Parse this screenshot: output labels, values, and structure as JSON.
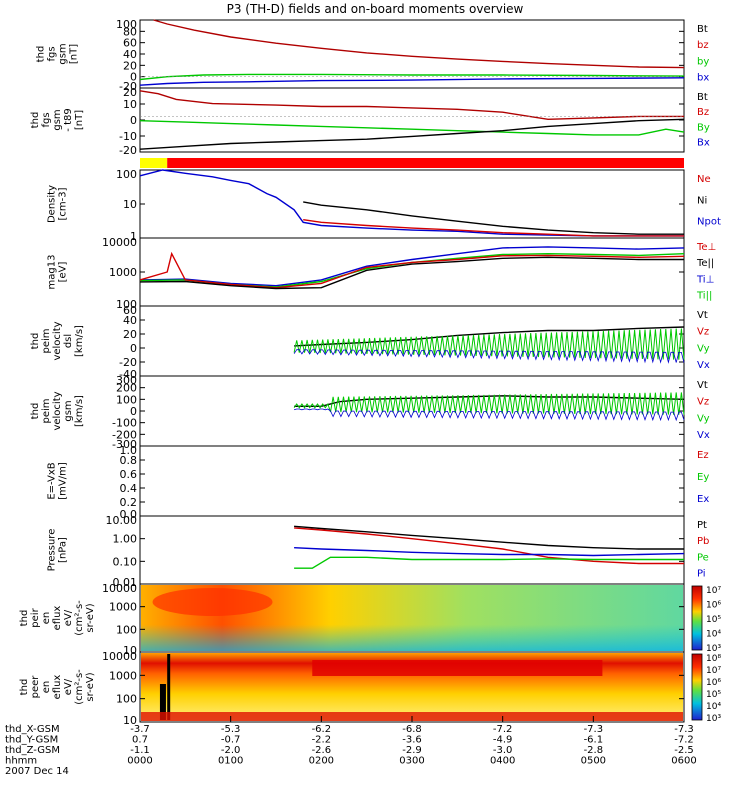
{
  "title": "P3 (TH-D) fields and on-board moments overview",
  "colors": {
    "black": "#000000",
    "red": "#d40000",
    "green": "#00c800",
    "blue": "#0000d0",
    "darkred": "#b00000",
    "spec_top": "#d01010",
    "spec_low": "#ffe000"
  },
  "chart_data": [
    {
      "type": "line",
      "ylabel": [
        "thd",
        "fgs",
        "gsm",
        "[nT]"
      ],
      "ylim": [
        -20,
        100
      ],
      "ytick_labels": [
        "100",
        "80",
        "60",
        "40",
        "20",
        "0",
        "-20"
      ],
      "legend": [
        {
          "label": "Bt",
          "color": "black"
        },
        {
          "label": "bz",
          "color": "red"
        },
        {
          "label": "by",
          "color": "green"
        },
        {
          "label": "bx",
          "color": "blue"
        }
      ],
      "series": [
        {
          "name": "Bt",
          "color": "darkred",
          "x": [
            0.15,
            0.3,
            0.6,
            1.0,
            1.5,
            2.0,
            2.5,
            3.0,
            3.5,
            4.0,
            4.5,
            5.0,
            5.5,
            6.0
          ],
          "y": [
            100,
            93,
            82,
            70,
            59,
            50,
            42,
            36,
            31,
            27,
            23,
            20,
            17,
            16
          ]
        },
        {
          "name": "by",
          "color": "green",
          "x": [
            0,
            0.3,
            0.7,
            1.2,
            2,
            3,
            4,
            5,
            6
          ],
          "y": [
            -5,
            0,
            3,
            4,
            4,
            3,
            3,
            2,
            1
          ]
        },
        {
          "name": "bx",
          "color": "blue",
          "x": [
            0,
            0.3,
            0.7,
            1.2,
            2,
            3,
            4,
            5,
            6
          ],
          "y": [
            -15,
            -12,
            -10,
            -9,
            -7,
            -6,
            -4,
            -3,
            -2
          ]
        }
      ]
    },
    {
      "type": "line",
      "ylabel": [
        "thd",
        "fgs",
        "gsm",
        "- t89",
        "[nT]"
      ],
      "ylim": [
        -25,
        20
      ],
      "ytick_labels": [
        "20",
        "10",
        "0",
        "-10",
        "-20"
      ],
      "legend": [
        {
          "label": "Bt",
          "color": "black"
        },
        {
          "label": "Bz",
          "color": "red"
        },
        {
          "label": "By",
          "color": "green"
        },
        {
          "label": "Bx",
          "color": "blue"
        }
      ],
      "series": [
        {
          "name": "Bz",
          "color": "darkred",
          "x": [
            0,
            0.2,
            0.4,
            0.8,
            1.5,
            2,
            2.5,
            3,
            3.5,
            4,
            4.5,
            5,
            5.5,
            6
          ],
          "y": [
            18,
            16,
            12,
            9,
            8,
            7,
            7,
            6,
            5,
            3,
            -2,
            -1,
            0,
            0
          ]
        },
        {
          "name": "By",
          "color": "green",
          "x": [
            0,
            0.5,
            1,
            1.5,
            2,
            2.5,
            3,
            3.5,
            4,
            4.5,
            5,
            5.5,
            5.8,
            6
          ],
          "y": [
            -3,
            -4,
            -5,
            -6,
            -7,
            -8,
            -9,
            -10,
            -11,
            -12,
            -13,
            -13,
            -9,
            -11
          ]
        },
        {
          "name": "Bx",
          "color": "black",
          "x": [
            0,
            0.5,
            1,
            1.5,
            2,
            2.5,
            3,
            3.5,
            4,
            4.5,
            5,
            5.5,
            6
          ],
          "y": [
            -23,
            -21,
            -19,
            -18,
            -17,
            -16,
            -14,
            -12,
            -10,
            -7,
            -5,
            -3,
            -2
          ]
        }
      ]
    },
    {
      "type": "bar",
      "mode_bar": [
        {
          "from": 0,
          "to": 0.3,
          "color": "yellow"
        },
        {
          "from": 0.3,
          "to": 6,
          "color": "red"
        }
      ]
    },
    {
      "type": "line",
      "ylabel": [
        "Density",
        "[cm-3]"
      ],
      "yscale": "log",
      "ylim": [
        0.5,
        200
      ],
      "ytick_labels": [
        "100",
        "10",
        "1"
      ],
      "legend": [
        {
          "label": "Ne",
          "color": "red"
        },
        {
          "label": "Ni",
          "color": "black"
        },
        {
          "label": "Npot",
          "color": "blue"
        }
      ],
      "series": [
        {
          "name": "Npot",
          "color": "blue",
          "x": [
            0,
            0.25,
            0.5,
            0.8,
            1,
            1.2,
            1.4,
            1.5,
            1.7,
            1.8,
            2,
            2.5,
            3,
            3.5,
            4,
            5,
            6
          ],
          "y": [
            120,
            200,
            150,
            110,
            80,
            60,
            25,
            18,
            6,
            2,
            1.5,
            1.2,
            1.0,
            0.9,
            0.7,
            0.6,
            0.6
          ]
        },
        {
          "name": "Ni",
          "color": "black",
          "x": [
            1.8,
            2,
            2.5,
            3,
            3.5,
            4,
            4.5,
            5,
            5.5,
            6
          ],
          "y": [
            12,
            9,
            6,
            3.5,
            2.2,
            1.4,
            1.0,
            0.8,
            0.7,
            0.7
          ]
        },
        {
          "name": "Ne",
          "color": "red",
          "x": [
            1.8,
            2,
            2.5,
            3,
            3.5,
            4,
            4.5,
            5,
            5.5,
            6
          ],
          "y": [
            2.5,
            2.0,
            1.5,
            1.2,
            1.0,
            0.8,
            0.7,
            0.6,
            0.6,
            0.6
          ]
        }
      ]
    },
    {
      "type": "line",
      "ylabel": [
        "mag13",
        "[eV]"
      ],
      "yscale": "log",
      "ylim": [
        30,
        12000
      ],
      "ytick_labels": [
        "10000",
        "1000",
        "100"
      ],
      "legend": [
        {
          "label": "Te⊥",
          "color": "red"
        },
        {
          "label": "Te||",
          "color": "black"
        },
        {
          "label": "Ti⊥",
          "color": "blue"
        },
        {
          "label": "Ti||",
          "color": "green"
        }
      ],
      "series": [
        {
          "name": "Ti⊥",
          "color": "blue",
          "x": [
            0,
            0.5,
            1,
            1.5,
            2,
            2.5,
            3,
            3.5,
            4,
            4.5,
            5,
            5.5,
            6
          ],
          "y": [
            300,
            320,
            220,
            180,
            300,
            1000,
            1800,
            3000,
            5000,
            5500,
            5000,
            4500,
            5000
          ]
        },
        {
          "name": "Ti||",
          "color": "green",
          "x": [
            0,
            0.5,
            1,
            1.5,
            2,
            2.5,
            3,
            3.5,
            4,
            4.5,
            5,
            5.5,
            6
          ],
          "y": [
            280,
            300,
            200,
            160,
            260,
            800,
            1400,
            2000,
            2800,
            3000,
            2800,
            2600,
            3000
          ]
        },
        {
          "name": "Te⊥",
          "color": "red",
          "x": [
            0,
            0.3,
            0.35,
            0.5,
            1,
            1.5,
            2,
            2.5,
            3,
            3.5,
            4,
            4.5,
            5,
            5.5,
            6
          ],
          "y": [
            300,
            600,
            3000,
            300,
            200,
            150,
            220,
            900,
            1400,
            1800,
            2500,
            2600,
            2400,
            2200,
            2400
          ]
        },
        {
          "name": "Te||",
          "color": "black",
          "x": [
            0,
            0.5,
            1,
            1.5,
            2,
            2.5,
            3,
            3.5,
            4,
            4.5,
            5,
            5.5,
            6
          ],
          "y": [
            250,
            260,
            180,
            140,
            150,
            700,
            1200,
            1500,
            2000,
            2200,
            2000,
            1800,
            1800
          ]
        }
      ]
    },
    {
      "type": "line",
      "ylabel": [
        "thd",
        "peim",
        "velocity",
        "dsl",
        "[km/s]"
      ],
      "ylim": [
        -40,
        60
      ],
      "ytick_labels": [
        "60",
        "40",
        "20",
        "0",
        "-20",
        "-40"
      ],
      "legend": [
        {
          "label": "Vt",
          "color": "black"
        },
        {
          "label": "Vz",
          "color": "red"
        },
        {
          "label": "Vy",
          "color": "green"
        },
        {
          "label": "Vx",
          "color": "blue"
        }
      ],
      "series": [
        {
          "name": "Vt",
          "color": "black",
          "x": [
            1.7,
            2,
            2.5,
            3,
            3.5,
            4,
            4.5,
            5,
            5.5,
            6
          ],
          "y": [
            3,
            5,
            8,
            12,
            18,
            22,
            25,
            25,
            28,
            30
          ]
        }
      ]
    },
    {
      "type": "line",
      "ylabel": [
        "thd",
        "peim",
        "velocity",
        "gsm",
        "[km/s]"
      ],
      "ylim": [
        -300,
        300
      ],
      "ytick_labels": [
        "300",
        "200",
        "100",
        "0",
        "-100",
        "-200",
        "-300"
      ],
      "legend": [
        {
          "label": "Vt",
          "color": "black"
        },
        {
          "label": "Vz",
          "color": "red"
        },
        {
          "label": "Vy",
          "color": "green"
        },
        {
          "label": "Vx",
          "color": "blue"
        }
      ],
      "series": [
        {
          "name": "Vt",
          "color": "black",
          "x": [
            1.7,
            2,
            2.2,
            2.5,
            3,
            3.5,
            4,
            4.5,
            5,
            5.5,
            6
          ],
          "y": [
            40,
            40,
            80,
            100,
            110,
            120,
            130,
            120,
            120,
            110,
            100
          ]
        }
      ]
    },
    {
      "type": "line",
      "ylabel": [
        "E=-VxB",
        "[mV/m]"
      ],
      "ylim": [
        0,
        1
      ],
      "ytick_labels": [
        "1.0",
        "0.8",
        "0.6",
        "0.4",
        "0.2",
        "0.0"
      ],
      "legend": [
        {
          "label": "Ez",
          "color": "red"
        },
        {
          "label": "Ey",
          "color": "green"
        },
        {
          "label": "Ex",
          "color": "blue"
        }
      ],
      "series": []
    },
    {
      "type": "line",
      "ylabel": [
        "Pressure",
        "[nPa]"
      ],
      "yscale": "log",
      "ylim": [
        0.01,
        10
      ],
      "ytick_labels": [
        "10.00",
        "1.00",
        "0.10",
        "0.01"
      ],
      "legend": [
        {
          "label": "Pt",
          "color": "black"
        },
        {
          "label": "Pb",
          "color": "red"
        },
        {
          "label": "Pe",
          "color": "green"
        },
        {
          "label": "Pi",
          "color": "blue"
        }
      ],
      "series": [
        {
          "name": "Pt",
          "color": "black",
          "x": [
            1.7,
            2,
            2.5,
            3,
            3.5,
            4,
            4.5,
            5,
            5.5,
            6
          ],
          "y": [
            3.5,
            2.8,
            2.0,
            1.4,
            1.0,
            0.7,
            0.5,
            0.4,
            0.35,
            0.35
          ]
        },
        {
          "name": "Pb",
          "color": "red",
          "x": [
            1.7,
            2,
            2.5,
            3,
            3.5,
            4,
            4.5,
            5,
            5.5,
            6
          ],
          "y": [
            3.0,
            2.4,
            1.6,
            1.0,
            0.6,
            0.35,
            0.15,
            0.1,
            0.08,
            0.08
          ]
        },
        {
          "name": "Pi",
          "color": "blue",
          "x": [
            1.7,
            2,
            2.5,
            3,
            3.5,
            4,
            4.5,
            5,
            5.5,
            6
          ],
          "y": [
            0.4,
            0.35,
            0.3,
            0.25,
            0.22,
            0.2,
            0.2,
            0.18,
            0.2,
            0.22
          ]
        },
        {
          "name": "Pe",
          "color": "green",
          "x": [
            1.7,
            1.9,
            2.1,
            2.5,
            3,
            3.5,
            4,
            4.5,
            5,
            5.5,
            6
          ],
          "y": [
            0.05,
            0.05,
            0.15,
            0.15,
            0.12,
            0.12,
            0.12,
            0.13,
            0.12,
            0.12,
            0.12
          ]
        }
      ]
    },
    {
      "type": "heatmap",
      "ylabel": [
        "thd",
        "peir",
        "en",
        "eflux",
        "eV/",
        "(cm²-s-",
        "sr-eV)"
      ],
      "yscale": "log",
      "ytick_labels": [
        "10000",
        "1000",
        "100",
        "10"
      ],
      "colorbar_labels": [
        "10⁷",
        "10⁶",
        "10⁵",
        "10⁴",
        "10³"
      ]
    },
    {
      "type": "heatmap",
      "ylabel": [
        "thd",
        "peer",
        "en",
        "eflux",
        "eV/",
        "(cm²-s-",
        "sr-eV)"
      ],
      "yscale": "log",
      "ytick_labels": [
        "10000",
        "1000",
        "100",
        "10"
      ],
      "colorbar_labels": [
        "10⁸",
        "10⁷",
        "10⁶",
        "10⁵",
        "10⁴",
        "10³"
      ]
    }
  ],
  "xaxis": {
    "rows": [
      {
        "label": "thd_X-GSM",
        "values": [
          "-3.7",
          "-5.3",
          "-6.2",
          "-6.8",
          "-7.2",
          "-7.3",
          "-7.3"
        ]
      },
      {
        "label": "thd_Y-GSM",
        "values": [
          "0.7",
          "-0.7",
          "-2.2",
          "-3.6",
          "-4.9",
          "-6.1",
          "-7.2"
        ]
      },
      {
        "label": "thd_Z-GSM",
        "values": [
          "-1.1",
          "-2.0",
          "-2.6",
          "-2.9",
          "-3.0",
          "-2.8",
          "-2.5"
        ]
      },
      {
        "label": "hhmm",
        "values": [
          "0000",
          "0100",
          "0200",
          "0300",
          "0400",
          "0500",
          "0600"
        ]
      }
    ],
    "date": "2007 Dec 14"
  }
}
